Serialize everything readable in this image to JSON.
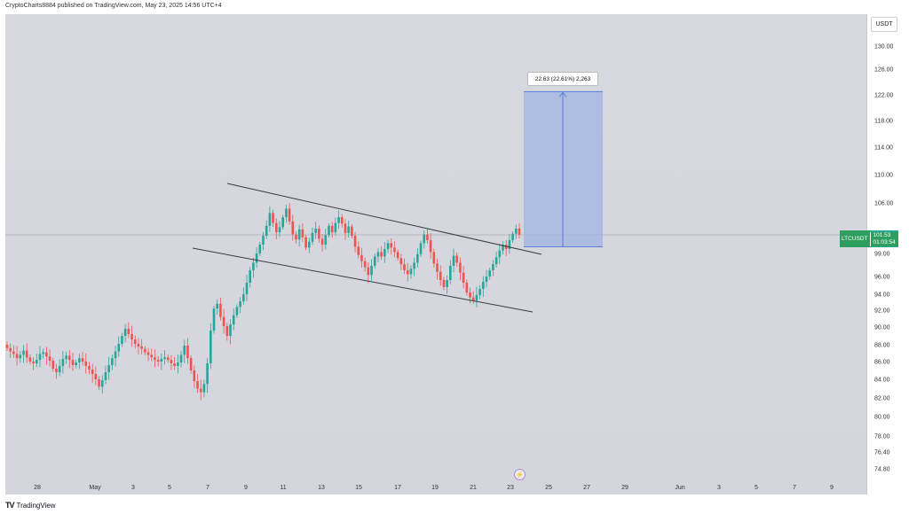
{
  "header": {
    "publisher_line": "CryptoCharts8884 published on TradingView.com, May 23, 2025 14:56 UTC+4"
  },
  "currency_button": "USDT",
  "symbol_tag": {
    "symbol": "LTCUSDT",
    "price": "101.53",
    "countdown": "01:03:54"
  },
  "measure_label": "22.63 (22.61%) 2,263",
  "footer": {
    "brand": "TradingView",
    "logo_icon": "tradingview-logo-icon"
  },
  "event_icon": "lightning-bolt-icon",
  "colors": {
    "up": "#26a69a",
    "down": "#ef5350",
    "measure_fill": "#9fb4e3",
    "measure_line": "#5b7fd8",
    "trendline": "#3a3a3a",
    "price_line": "#888888"
  },
  "chart_data": {
    "type": "candlestick",
    "symbol": "LTCUSDT",
    "y_ticks": [
      "130.00",
      "126.00",
      "122.00",
      "118.00",
      "114.00",
      "110.00",
      "106.00",
      "99.00",
      "96.00",
      "94.00",
      "92.00",
      "90.00",
      "88.00",
      "86.00",
      "84.00",
      "82.00",
      "80.00",
      "78.00",
      "76.40",
      "74.80"
    ],
    "x_ticks": [
      "28",
      "May",
      "3",
      "5",
      "7",
      "9",
      "11",
      "13",
      "15",
      "17",
      "19",
      "21",
      "23",
      "25",
      "27",
      "29",
      "Jun",
      "3",
      "5",
      "7",
      "9"
    ],
    "last_price": 101.53,
    "closes_2h": [
      87.6,
      87.2,
      86.9,
      86.4,
      86.8,
      87.3,
      86.5,
      86.0,
      85.8,
      86.2,
      86.9,
      87.1,
      86.6,
      86.1,
      85.2,
      84.8,
      85.5,
      86.3,
      86.7,
      86.2,
      85.6,
      85.9,
      86.4,
      86.0,
      85.5,
      85.1,
      84.6,
      84.0,
      83.2,
      83.9,
      84.8,
      85.6,
      86.4,
      87.2,
      88.1,
      89.0,
      89.8,
      89.2,
      88.6,
      88.1,
      87.8,
      87.5,
      87.1,
      86.8,
      86.5,
      86.2,
      86.0,
      86.3,
      86.5,
      86.2,
      85.8,
      85.5,
      85.9,
      86.8,
      87.9,
      86.4,
      85.0,
      83.8,
      83.0,
      82.6,
      83.5,
      85.8,
      89.6,
      92.2,
      92.8,
      91.2,
      90.1,
      89.0,
      90.3,
      91.4,
      92.4,
      93.1,
      94.0,
      95.3,
      96.8,
      97.8,
      99.0,
      100.2,
      101.4,
      102.8,
      104.6,
      103.2,
      101.9,
      102.6,
      104.0,
      105.2,
      103.4,
      101.6,
      100.9,
      102.3,
      101.2,
      99.8,
      100.6,
      101.8,
      102.4,
      101.0,
      100.2,
      101.5,
      102.8,
      101.9,
      103.2,
      104.0,
      103.1,
      101.8,
      102.7,
      101.4,
      99.9,
      98.8,
      98.0,
      97.2,
      96.2,
      97.4,
      98.6,
      99.2,
      98.6,
      99.6,
      100.4,
      99.8,
      99.2,
      98.4,
      97.6,
      96.8,
      96.3,
      97.0,
      97.8,
      98.9,
      100.4,
      101.6,
      100.8,
      99.2,
      97.7,
      96.6,
      95.6,
      94.8,
      95.6,
      97.4,
      98.7,
      97.8,
      96.5,
      95.3,
      94.2,
      93.6,
      93.2,
      93.9,
      94.6,
      95.4,
      96.0,
      96.8,
      97.6,
      98.5,
      99.4,
      100.2,
      99.6,
      100.8,
      101.7,
      102.4,
      101.53
    ],
    "descending_channel": {
      "upper_line": [
        [
          106.5
        ],
        [
          99.2
        ]
      ],
      "lower_line": [
        [
          100.4
        ],
        [
          92.5
        ]
      ]
    },
    "measure_projection": {
      "from_price": 99.9,
      "to_price": 122.5,
      "change": "22.63 (22.61%) 2,263"
    }
  }
}
